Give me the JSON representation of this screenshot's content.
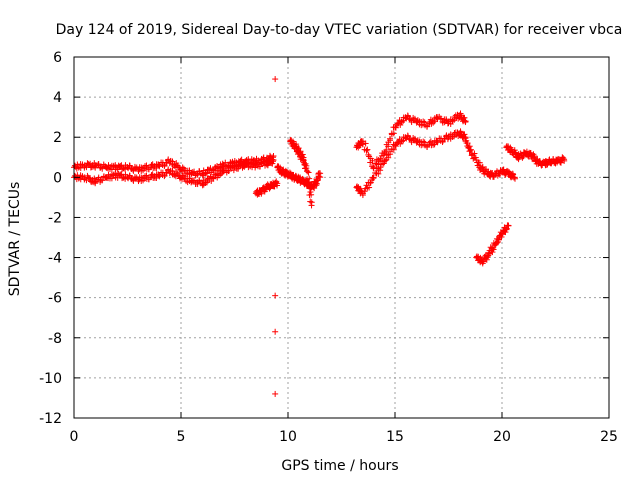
{
  "chart_data": {
    "type": "scatter",
    "title": "Day 124 of 2019, Sidereal Day-to-day VTEC variation (SDTVAR) for receiver vbca",
    "xlabel": "GPS time / hours",
    "ylabel": "SDTVAR / TECUs",
    "xlim": [
      0,
      25
    ],
    "ylim": [
      -12,
      6
    ],
    "xticks": [
      0,
      5,
      10,
      15,
      20,
      25
    ],
    "yticks": [
      -12,
      -10,
      -8,
      -6,
      -4,
      -2,
      0,
      2,
      4,
      6
    ],
    "grid": true,
    "marker": "+",
    "color": "#ff0000",
    "series": [
      {
        "name": "band-upper-0-9",
        "x": [
          0,
          0.5,
          1,
          1.5,
          2,
          2.5,
          3,
          3.5,
          4,
          4.5,
          5,
          5.5,
          6,
          6.5,
          7,
          7.5,
          8,
          8.5,
          9,
          9.3
        ],
        "y": [
          0.5,
          0.6,
          0.6,
          0.5,
          0.5,
          0.5,
          0.4,
          0.5,
          0.6,
          0.8,
          0.4,
          0.2,
          0.2,
          0.4,
          0.6,
          0.7,
          0.8,
          0.8,
          0.9,
          1.0
        ]
      },
      {
        "name": "band-lower-0-9",
        "x": [
          0,
          0.5,
          1,
          1.5,
          2,
          2.5,
          3,
          3.5,
          4,
          4.5,
          5,
          5.5,
          6,
          6.5,
          7,
          7.5,
          8,
          8.5,
          9,
          9.3
        ],
        "y": [
          0.0,
          0.0,
          -0.2,
          0.0,
          0.1,
          0.0,
          -0.1,
          0.0,
          0.1,
          0.3,
          0.0,
          -0.2,
          -0.3,
          0.0,
          0.3,
          0.5,
          0.6,
          0.6,
          0.7,
          0.8
        ]
      },
      {
        "name": "dip-8.5-9.5",
        "x": [
          8.5,
          8.75,
          9.0,
          9.25,
          9.5
        ],
        "y": [
          -0.8,
          -0.7,
          -0.5,
          -0.4,
          -0.3
        ]
      },
      {
        "name": "cluster-9.5-11.8",
        "x": [
          9.5,
          9.7,
          9.9,
          10.1,
          10.3,
          10.5,
          10.7,
          10.9,
          11.1,
          11.3,
          11.5
        ],
        "y": [
          0.5,
          0.3,
          0.2,
          0.1,
          0.0,
          -0.1,
          -0.2,
          -0.3,
          -0.5,
          -0.3,
          0.2
        ]
      },
      {
        "name": "arc-10.1-11.2",
        "x": [
          10.1,
          10.3,
          10.5,
          10.7,
          10.9,
          11.1
        ],
        "y": [
          1.8,
          1.6,
          1.3,
          0.9,
          0.3,
          -1.4
        ]
      },
      {
        "name": "rise-13.2-18.3-upper",
        "x": [
          13.2,
          13.5,
          14,
          14.5,
          15,
          15.5,
          16,
          16.5,
          17,
          17.5,
          18,
          18.3
        ],
        "y": [
          1.5,
          1.8,
          0.5,
          1.2,
          2.5,
          3.0,
          2.8,
          2.6,
          3.0,
          2.7,
          3.1,
          2.8
        ]
      },
      {
        "name": "rise-13.2-18.3-lower",
        "x": [
          13.2,
          13.5,
          14,
          14.5,
          15,
          15.5,
          16,
          16.5,
          17,
          17.5,
          18,
          18.3
        ],
        "y": [
          -0.5,
          -0.8,
          0.0,
          0.8,
          1.6,
          2.0,
          1.8,
          1.6,
          1.8,
          2.0,
          2.2,
          2.0
        ]
      },
      {
        "name": "decline-18.3-20.6",
        "x": [
          18.3,
          18.6,
          19,
          19.3,
          19.6,
          20,
          20.3,
          20.6
        ],
        "y": [
          1.8,
          1.2,
          0.5,
          0.2,
          0.1,
          0.3,
          0.2,
          0.0
        ]
      },
      {
        "name": "late-20.2-22.9",
        "x": [
          20.2,
          20.5,
          20.8,
          21.1,
          21.4,
          21.7,
          22,
          22.3,
          22.6,
          22.9
        ],
        "y": [
          1.5,
          1.3,
          1.0,
          1.2,
          1.1,
          0.7,
          0.7,
          0.8,
          0.8,
          0.9
        ]
      },
      {
        "name": "negative-18.8-20.3",
        "x": [
          18.8,
          19.1,
          19.4,
          19.7,
          20.0,
          20.3
        ],
        "y": [
          -4.0,
          -4.2,
          -3.8,
          -3.3,
          -2.8,
          -2.4
        ]
      },
      {
        "name": "outliers",
        "x": [
          9.4,
          9.4,
          9.4,
          9.4
        ],
        "y": [
          4.9,
          -5.9,
          -7.7,
          -10.8
        ]
      }
    ]
  }
}
